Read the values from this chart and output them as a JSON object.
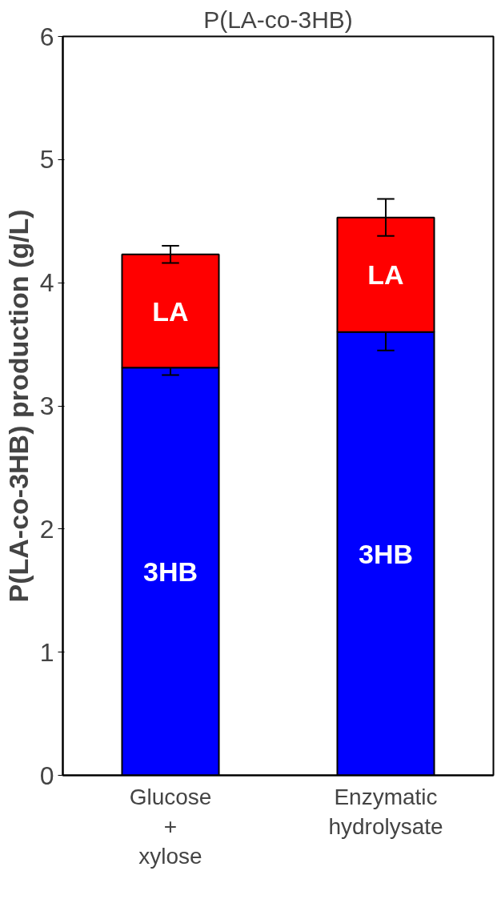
{
  "chart_data": {
    "type": "bar",
    "title": "P(LA-co-3HB)",
    "ylabel": "P(LA-co-3HB) production (g/L)",
    "categories": [
      "Glucose\n+\nxylose",
      "Enzymatic\nhydrolysate"
    ],
    "stacked": true,
    "ylim": [
      0,
      6
    ],
    "yticks": [
      0,
      1,
      2,
      3,
      4,
      5,
      6
    ],
    "grid": false,
    "legend": false,
    "series": [
      {
        "name": "3HB",
        "color": "#0000ff",
        "values": [
          3.31,
          3.6
        ],
        "errors": [
          0.06,
          0.15
        ]
      },
      {
        "name": "LA",
        "color": "#ff0000",
        "values": [
          0.92,
          0.93
        ],
        "errors": [
          0.07,
          0.15
        ]
      }
    ]
  }
}
